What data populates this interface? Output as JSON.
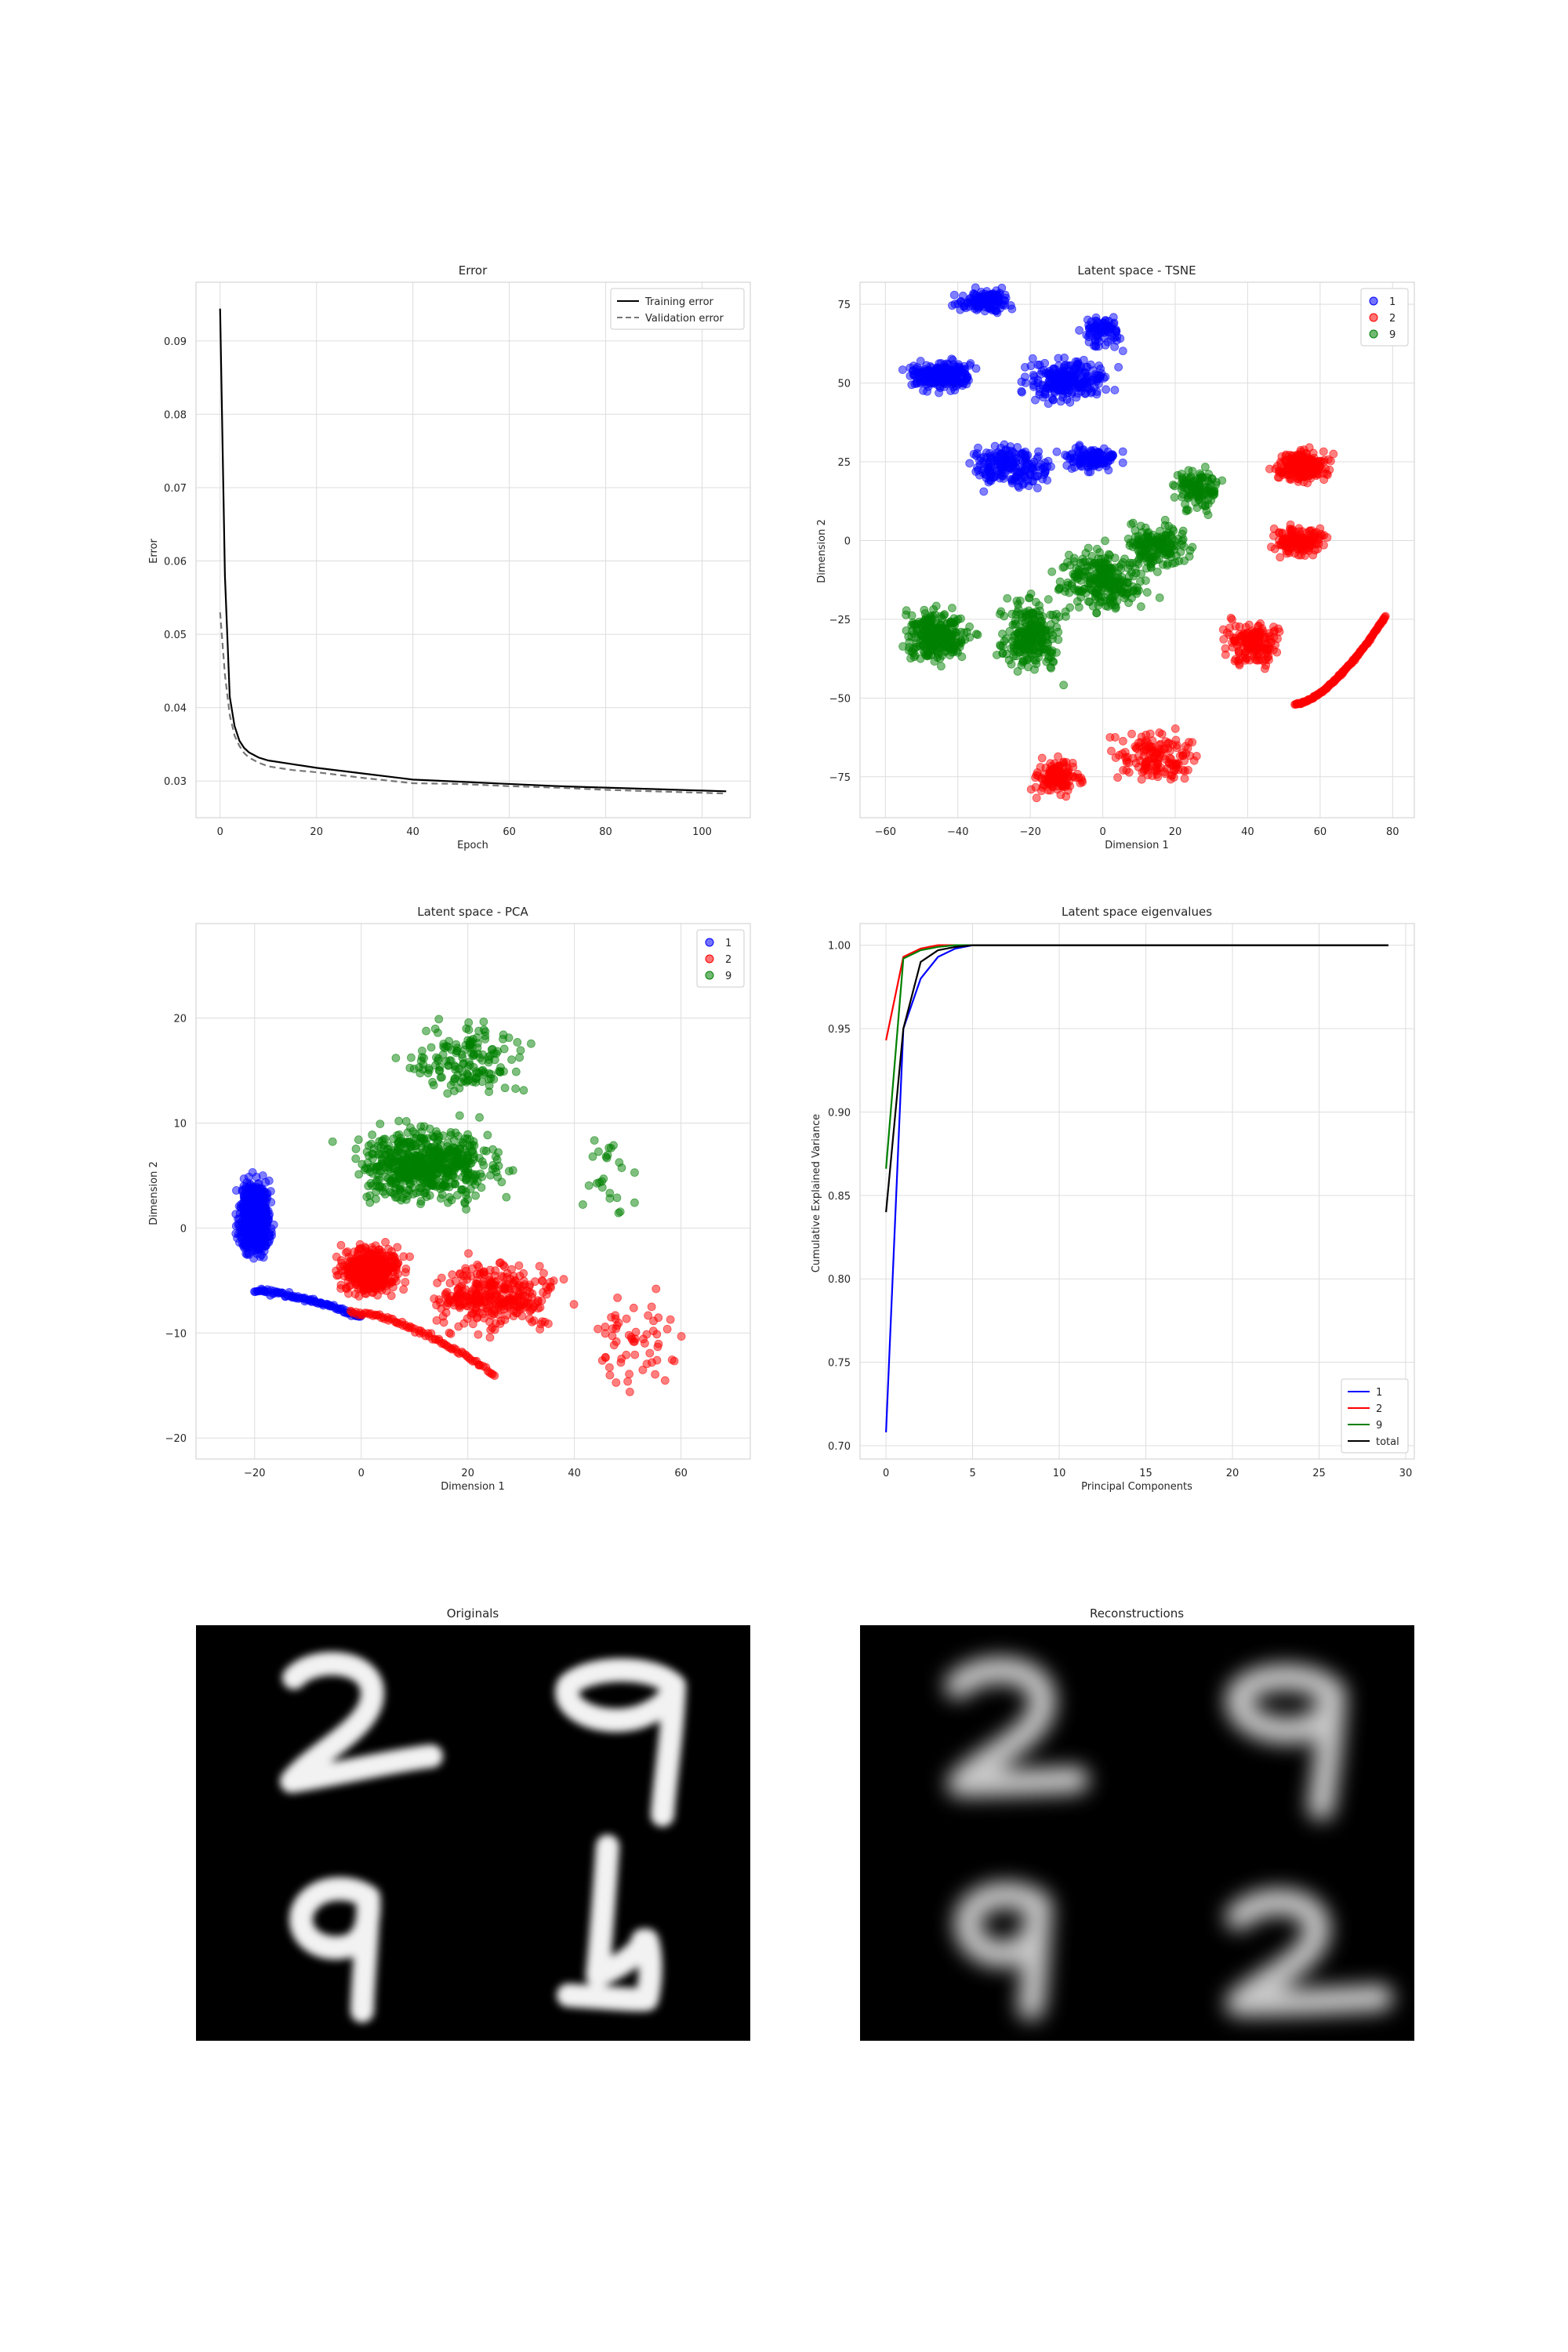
{
  "colors": {
    "c1": "#0000ff",
    "c2": "#ff0000",
    "c9": "#008000",
    "total": "#000000",
    "grid": "#dddddd",
    "frame": "#cccccc"
  },
  "chart_data": [
    {
      "type": "line",
      "title": "Error",
      "xlabel": "Epoch",
      "ylabel": "Error",
      "xlim": [
        -5,
        110
      ],
      "ylim": [
        0.025,
        0.098
      ],
      "xticks": [
        0,
        20,
        40,
        60,
        80,
        100
      ],
      "yticks": [
        0.03,
        0.04,
        0.05,
        0.06,
        0.07,
        0.08,
        0.09
      ],
      "grid": true,
      "legend_position": "top-right",
      "series": [
        {
          "name": "Training error",
          "style": "solid",
          "color": "#000000",
          "x": [
            0,
            1,
            2,
            3,
            4,
            5,
            6,
            8,
            10,
            15,
            20,
            30,
            40,
            50,
            60,
            70,
            80,
            90,
            100,
            105
          ],
          "y": [
            0.0944,
            0.058,
            0.0415,
            0.0375,
            0.0355,
            0.0345,
            0.0339,
            0.0332,
            0.0328,
            0.0323,
            0.0318,
            0.031,
            0.0302,
            0.0299,
            0.0296,
            0.0293,
            0.0291,
            0.0289,
            0.0287,
            0.0286
          ]
        },
        {
          "name": "Validation error",
          "style": "dashed",
          "color": "#777777",
          "x": [
            0,
            1,
            2,
            3,
            4,
            5,
            6,
            8,
            10,
            15,
            20,
            30,
            40,
            50,
            60,
            70,
            80,
            90,
            100,
            105
          ],
          "y": [
            0.053,
            0.0445,
            0.039,
            0.0362,
            0.0348,
            0.0338,
            0.0332,
            0.0325,
            0.032,
            0.0315,
            0.0312,
            0.0304,
            0.0297,
            0.0296,
            0.0293,
            0.0291,
            0.0288,
            0.0286,
            0.0284,
            0.0283
          ]
        }
      ]
    },
    {
      "type": "scatter",
      "title": "Latent space - TSNE",
      "xlabel": "Dimension 1",
      "ylabel": "Dimension 2",
      "xlim": [
        -67,
        86
      ],
      "ylim": [
        -88,
        82
      ],
      "xticks": [
        -60,
        -40,
        -20,
        0,
        20,
        40,
        60,
        80
      ],
      "yticks": [
        -75,
        -50,
        -25,
        0,
        25,
        50,
        75
      ],
      "grid": true,
      "legend_position": "top-right",
      "legend": [
        "1",
        "2",
        "9"
      ],
      "series": [
        {
          "name": "1",
          "color": "#0000ff",
          "clusters": [
            {
              "x": [
                -60,
                -30
              ],
              "y": [
                45,
                60
              ],
              "n": 220
            },
            {
              "x": [
                -45,
                -20
              ],
              "y": [
                70,
                82
              ],
              "n": 140
            },
            {
              "x": [
                -30,
                10
              ],
              "y": [
                40,
                62
              ],
              "n": 240
            },
            {
              "x": [
                -45,
                -5
              ],
              "y": [
                12,
                35
              ],
              "n": 200
            },
            {
              "x": [
                -15,
                10
              ],
              "y": [
                20,
                32
              ],
              "n": 120
            },
            {
              "x": [
                -10,
                10
              ],
              "y": [
                55,
                78
              ],
              "n": 80
            }
          ]
        },
        {
          "name": "2",
          "color": "#ff0000",
          "clusters": [
            {
              "x": [
                42,
                68
              ],
              "y": [
                15,
                32
              ],
              "n": 220
            },
            {
              "x": [
                42,
                66
              ],
              "y": [
                -8,
                8
              ],
              "n": 150
            },
            {
              "x": [
                28,
                55
              ],
              "y": [
                -45,
                -20
              ],
              "n": 170
            },
            {
              "x": [
                -25,
                0
              ],
              "y": [
                -85,
                -65
              ],
              "n": 140
            },
            {
              "x": [
                -5,
                35
              ],
              "y": [
                -82,
                -55
              ],
              "n": 150
            }
          ],
          "curve": {
            "x": [
              53,
              78
            ],
            "y": [
              -52,
              -24
            ],
            "n": 140
          }
        },
        {
          "name": "9",
          "color": "#008000",
          "clusters": [
            {
              "x": [
                -62,
                -30
              ],
              "y": [
                -45,
                -15
              ],
              "n": 260
            },
            {
              "x": [
                -35,
                -5
              ],
              "y": [
                -50,
                -10
              ],
              "n": 230
            },
            {
              "x": [
                -20,
                20
              ],
              "y": [
                -30,
                5
              ],
              "n": 260
            },
            {
              "x": [
                0,
                30
              ],
              "y": [
                -15,
                12
              ],
              "n": 160
            },
            {
              "x": [
                15,
                38
              ],
              "y": [
                5,
                28
              ],
              "n": 120
            }
          ]
        }
      ]
    },
    {
      "type": "scatter",
      "title": "Latent space - PCA",
      "xlabel": "Dimension 1",
      "ylabel": "Dimension 2",
      "xlim": [
        -31,
        73
      ],
      "ylim": [
        -22,
        29
      ],
      "xticks": [
        -20,
        0,
        20,
        40,
        60
      ],
      "yticks": [
        -20,
        -10,
        0,
        10,
        20
      ],
      "grid": true,
      "legend_position": "top-right",
      "legend": [
        "1",
        "2",
        "9"
      ],
      "series": [
        {
          "name": "1",
          "color": "#0000ff",
          "clusters": [
            {
              "x": [
                -25,
                -15
              ],
              "y": [
                -5,
                7
              ],
              "n": 700
            }
          ],
          "curve": {
            "x": [
              -20,
              0
            ],
            "y": [
              -6,
              -8.5
            ],
            "n": 90
          }
        },
        {
          "name": "2",
          "color": "#ff0000",
          "clusters": [
            {
              "x": [
                -8,
                12
              ],
              "y": [
                -8,
                0
              ],
              "n": 450
            },
            {
              "x": [
                5,
                45
              ],
              "y": [
                -12,
                -1
              ],
              "n": 330
            },
            {
              "x": [
                35,
                68
              ],
              "y": [
                -20,
                -2
              ],
              "n": 60
            }
          ],
          "curve": {
            "x": [
              -2,
              25
            ],
            "y": [
              -8,
              -14
            ],
            "n": 80
          }
        },
        {
          "name": "9",
          "color": "#008000",
          "clusters": [
            {
              "x": [
                -10,
                35
              ],
              "y": [
                0,
                12
              ],
              "n": 620
            },
            {
              "x": [
                0,
                40
              ],
              "y": [
                10,
                22
              ],
              "n": 160
            },
            {
              "x": [
                35,
                60
              ],
              "y": [
                -4,
                14
              ],
              "n": 25
            }
          ]
        }
      ]
    },
    {
      "type": "line",
      "title": "Latent space eigenvalues",
      "xlabel": "Principal Components",
      "ylabel": "Cumulative Explained Variance",
      "xlim": [
        -1.5,
        30.5
      ],
      "ylim": [
        0.692,
        1.013
      ],
      "xticks": [
        0,
        5,
        10,
        15,
        20,
        25,
        30
      ],
      "yticks": [
        0.7,
        0.75,
        0.8,
        0.85,
        0.9,
        0.95,
        1.0
      ],
      "grid": true,
      "legend_position": "bottom-right",
      "series": [
        {
          "name": "1",
          "color": "#0000ff",
          "x": [
            0,
            1,
            2,
            3,
            4,
            5,
            29
          ],
          "y": [
            0.708,
            0.95,
            0.98,
            0.993,
            0.998,
            1.0,
            1.0
          ]
        },
        {
          "name": "2",
          "color": "#ff0000",
          "x": [
            0,
            1,
            2,
            3,
            4,
            5,
            29
          ],
          "y": [
            0.943,
            0.993,
            0.998,
            1.0,
            1.0,
            1.0,
            1.0
          ]
        },
        {
          "name": "9",
          "color": "#008000",
          "x": [
            0,
            1,
            2,
            3,
            4,
            5,
            29
          ],
          "y": [
            0.866,
            0.992,
            0.997,
            0.999,
            1.0,
            1.0,
            1.0
          ]
        },
        {
          "name": "total",
          "color": "#000000",
          "x": [
            0,
            1,
            2,
            3,
            4,
            5,
            29
          ],
          "y": [
            0.84,
            0.95,
            0.99,
            0.997,
            0.999,
            1.0,
            1.0
          ]
        }
      ]
    }
  ],
  "images": {
    "originals_title": "Originals",
    "reconstructions_title": "Reconstructions",
    "digits": [
      "2",
      "9",
      "9",
      "1"
    ],
    "reconstructed_digits": [
      "2",
      "9",
      "9",
      "2"
    ]
  }
}
